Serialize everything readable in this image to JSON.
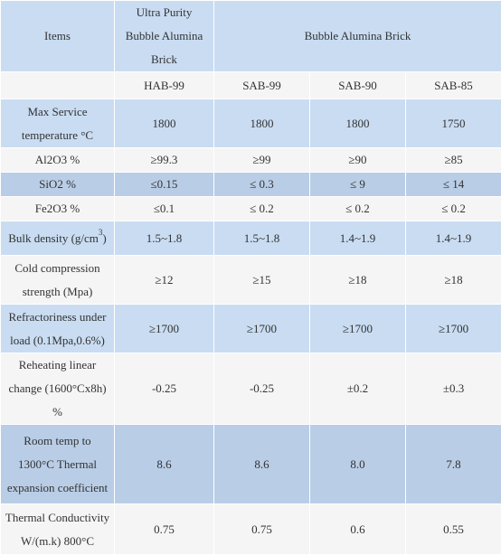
{
  "header": {
    "items_label": "Items",
    "ultra_group": "Ultra Purity Bubble Alumina Brick",
    "bubble_group": "Bubble Alumina Brick"
  },
  "grades": [
    "HAB-99",
    "SAB-99",
    "SAB-90",
    "SAB-85"
  ],
  "rows": [
    {
      "label": "Max Service temperature °C",
      "values": [
        "1800",
        "1800",
        "1800",
        "1750"
      ]
    },
    {
      "label": "Al2O3  %",
      "values": [
        "≥99.3",
        "≥99",
        "≥90",
        "≥85"
      ]
    },
    {
      "label": "SiO2 %",
      "values": [
        "≤0.15",
        "≤ 0.3",
        "≤ 9",
        "≤ 14"
      ]
    },
    {
      "label": "Fe2O3 %",
      "values": [
        "≤0.1",
        "≤ 0.2",
        "≤ 0.2",
        "≤ 0.2"
      ]
    },
    {
      "label": "Bulk density (g/cm",
      "label_sup": "3",
      "label_tail": ")",
      "values": [
        "1.5~1.8",
        "1.5~1.8",
        "1.4~1.9",
        "1.4~1.9"
      ]
    },
    {
      "label": "Cold compression strength (Mpa)",
      "values": [
        "≥12",
        "≥15",
        "≥18",
        "≥18"
      ]
    },
    {
      "label": "Refractoriness under load (0.1Mpa,0.6%)",
      "values": [
        "≥1700",
        "≥1700",
        "≥1700",
        "≥1700"
      ]
    },
    {
      "label": "Reheating linear change (1600°Cx8h) %",
      "values": [
        "-0.25",
        "-0.25",
        "±0.2",
        "±0.3"
      ]
    },
    {
      "label": "Room temp to 1300°C Thermal expansion coefficient",
      "values": [
        "8.6",
        "8.6",
        "8.0",
        "7.8"
      ]
    },
    {
      "label": "Thermal Conductivity W/(m.k) 800°C",
      "values": [
        "0.75",
        "0.75",
        "0.6",
        "0.55"
      ]
    }
  ]
}
